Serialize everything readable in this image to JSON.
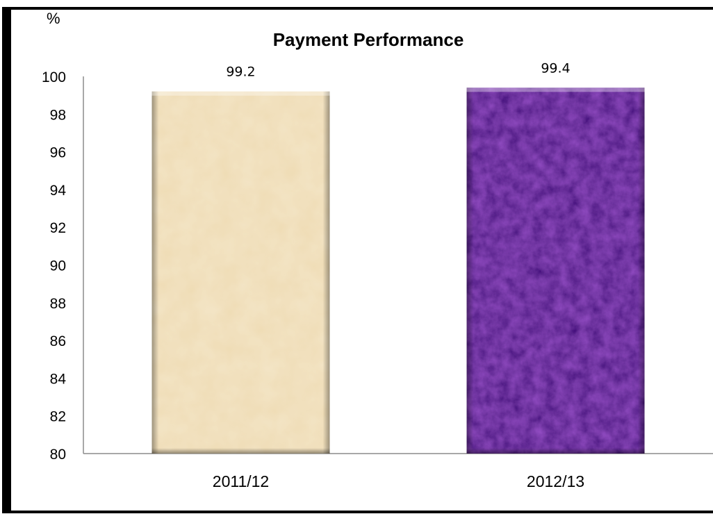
{
  "chart_data": {
    "type": "bar",
    "title": "Payment Performance",
    "unit_label": "%",
    "xlabel": "",
    "ylabel": "",
    "categories": [
      "2011/12",
      "2012/13"
    ],
    "values": [
      99.2,
      99.4
    ],
    "data_labels": [
      "99.2",
      "99.4"
    ],
    "ylim": [
      80,
      100
    ],
    "yticks": [
      80,
      82,
      84,
      86,
      88,
      90,
      92,
      94,
      96,
      98,
      100
    ],
    "grid": false,
    "legend": "none",
    "colors": [
      "#efdcb4",
      "#3e0d78"
    ]
  }
}
